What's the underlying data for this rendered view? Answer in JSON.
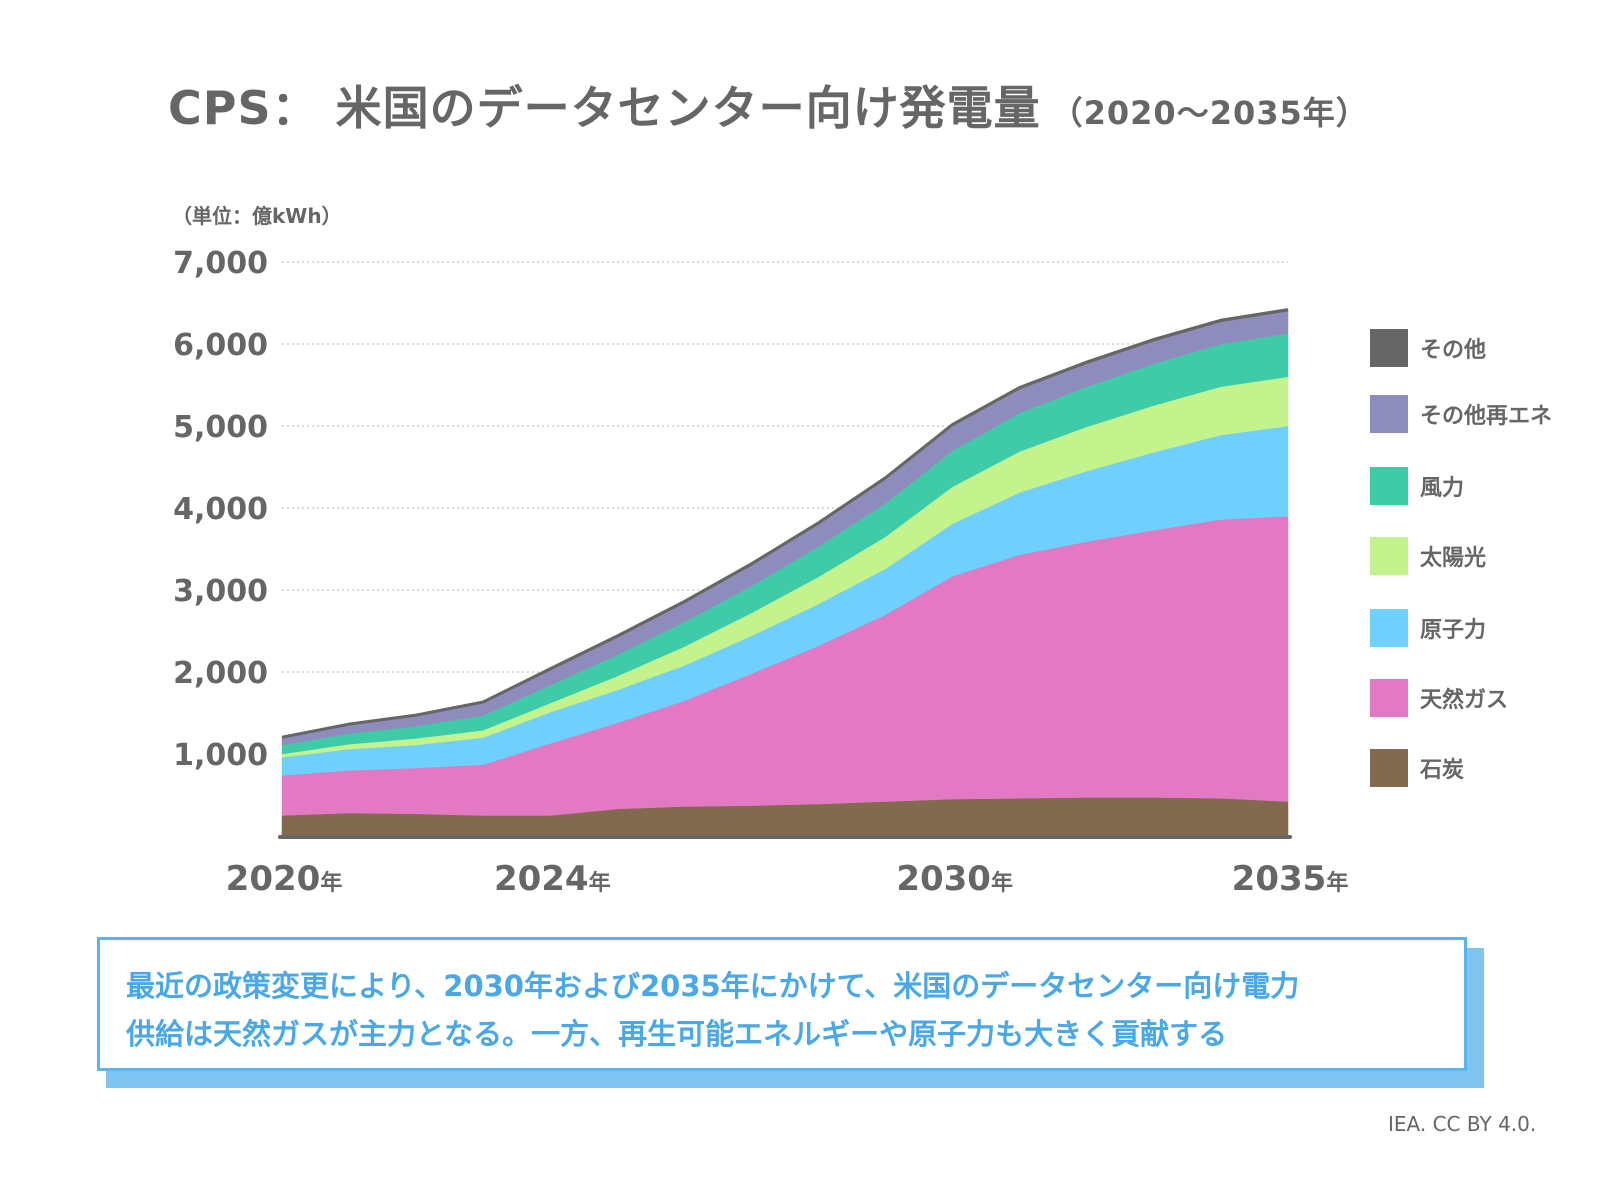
{
  "title": {
    "main": "CPS： 米国のデータセンター向け発電量",
    "sub": "（2020～2035年）"
  },
  "unit_label": "（単位：億kWh）",
  "note": {
    "lines": [
      "最近の政策変更により、2030年および2035年にかけて、米国のデータセンター向け電力",
      "供給は天然ガスが主力となる。一方、再生可能エネルギーや原子力も大きく貢献する"
    ]
  },
  "credit": "IEA. CC BY 4.0.",
  "chart_data": {
    "type": "area",
    "stacked": true,
    "title": "CPS： 米国のデータセンター向け発電量（2020～2035年）",
    "xlabel": "",
    "ylabel": "（単位：億kWh）",
    "x": [
      2020,
      2021,
      2022,
      2023,
      2024,
      2025,
      2026,
      2027,
      2028,
      2029,
      2030,
      2031,
      2032,
      2033,
      2034,
      2035
    ],
    "xticks": [
      {
        "value": 2020,
        "label": "2020",
        "suffix": "年"
      },
      {
        "value": 2024,
        "label": "2024",
        "suffix": "年"
      },
      {
        "value": 2030,
        "label": "2030",
        "suffix": "年"
      },
      {
        "value": 2035,
        "label": "2035",
        "suffix": "年"
      }
    ],
    "ylim": [
      0,
      7000
    ],
    "yticks": [
      {
        "value": 1000,
        "label": "1,000"
      },
      {
        "value": 2000,
        "label": "2,000"
      },
      {
        "value": 3000,
        "label": "3,000"
      },
      {
        "value": 4000,
        "label": "4,000"
      },
      {
        "value": 5000,
        "label": "5,000"
      },
      {
        "value": 6000,
        "label": "6,000"
      },
      {
        "value": 7000,
        "label": "7,000"
      }
    ],
    "grid": true,
    "legend_position": "right",
    "series": [
      {
        "name": "石炭",
        "color": "#826a4f",
        "values": [
          250,
          280,
          270,
          250,
          250,
          330,
          360,
          370,
          390,
          420,
          450,
          460,
          470,
          470,
          460,
          420
        ]
      },
      {
        "name": "天然ガス",
        "color": "#e279c2",
        "values": [
          490,
          520,
          560,
          620,
          880,
          1050,
          1290,
          1610,
          1930,
          2280,
          2720,
          2970,
          3120,
          3260,
          3400,
          3480
        ]
      },
      {
        "name": "原子力",
        "color": "#6fd0fd",
        "values": [
          220,
          260,
          280,
          330,
          380,
          400,
          430,
          460,
          510,
          560,
          640,
          760,
          860,
          950,
          1030,
          1100
        ]
      },
      {
        "name": "太陽光",
        "color": "#c4f28c",
        "values": [
          40,
          60,
          80,
          90,
          110,
          170,
          230,
          280,
          330,
          390,
          450,
          500,
          540,
          570,
          590,
          600
        ]
      },
      {
        "name": "風力",
        "color": "#40cba8",
        "values": [
          110,
          130,
          150,
          180,
          220,
          260,
          300,
          330,
          370,
          410,
          440,
          470,
          490,
          510,
          520,
          530
        ]
      },
      {
        "name": "その他再エネ",
        "color": "#8e8cbc",
        "values": [
          80,
          100,
          120,
          150,
          180,
          210,
          230,
          250,
          270,
          290,
          300,
          290,
          280,
          275,
          270,
          270
        ]
      },
      {
        "name": "その他",
        "color": "#666666",
        "values": [
          15,
          15,
          15,
          15,
          20,
          20,
          20,
          20,
          20,
          20,
          20,
          20,
          20,
          20,
          20,
          20
        ]
      }
    ],
    "legend_order": [
      "その他",
      "その他再エネ",
      "風力",
      "太陽光",
      "原子力",
      "天然ガス",
      "石炭"
    ]
  }
}
